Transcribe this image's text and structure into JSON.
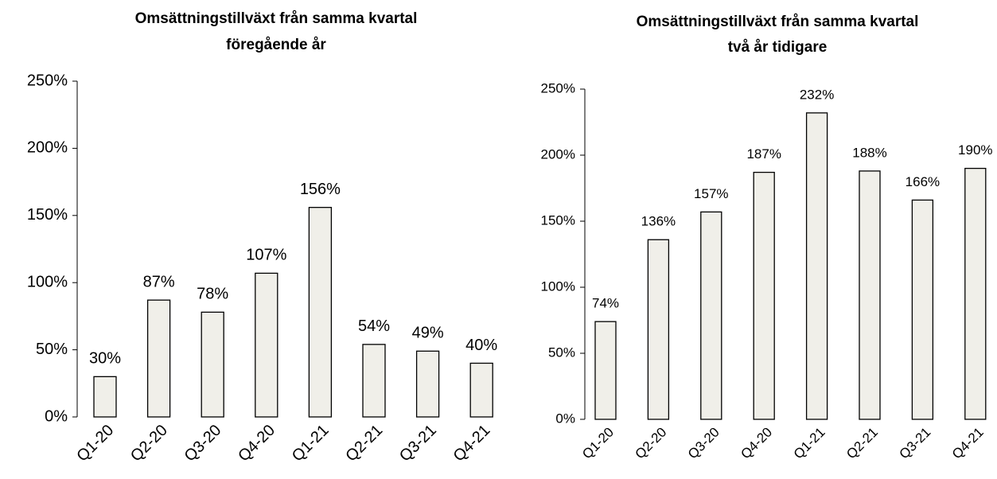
{
  "chart_data": [
    {
      "type": "bar",
      "title": [
        "Omsättningstillväxt från samma kvartal",
        "föregående år"
      ],
      "categories": [
        "Q1-20",
        "Q2-20",
        "Q3-20",
        "Q4-20",
        "Q1-21",
        "Q2-21",
        "Q3-21",
        "Q4-21"
      ],
      "values": [
        30,
        87,
        78,
        107,
        156,
        54,
        49,
        40
      ],
      "value_labels": [
        "30%",
        "87%",
        "78%",
        "107%",
        "156%",
        "54%",
        "49%",
        "40%"
      ],
      "color": "#f0efe9",
      "ylim": [
        0,
        250
      ],
      "yticks": [
        {
          "value": 0,
          "label": "0%"
        },
        {
          "value": 50,
          "label": "50%"
        },
        {
          "value": 100,
          "label": "100%"
        },
        {
          "value": 150,
          "label": "150%"
        },
        {
          "value": 200,
          "label": "200%"
        },
        {
          "value": 250,
          "label": "250%"
        }
      ],
      "grid": false
    },
    {
      "type": "bar",
      "title": [
        "Omsättningstillväxt från samma kvartal",
        "två år tidigare"
      ],
      "categories": [
        "Q1-20",
        "Q2-20",
        "Q3-20",
        "Q4-20",
        "Q1-21",
        "Q2-21",
        "Q3-21",
        "Q4-21"
      ],
      "values": [
        74,
        136,
        157,
        187,
        232,
        188,
        166,
        190
      ],
      "value_labels": [
        "74%",
        "136%",
        "157%",
        "187%",
        "232%",
        "188%",
        "166%",
        "190%"
      ],
      "color": "#f0efe9",
      "ylim": [
        0,
        250
      ],
      "yticks": [
        {
          "value": 0,
          "label": "0%"
        },
        {
          "value": 50,
          "label": "50%"
        },
        {
          "value": 100,
          "label": "100%"
        },
        {
          "value": 150,
          "label": "150%"
        },
        {
          "value": 200,
          "label": "200%"
        },
        {
          "value": 250,
          "label": "250%"
        }
      ],
      "grid": false
    }
  ]
}
